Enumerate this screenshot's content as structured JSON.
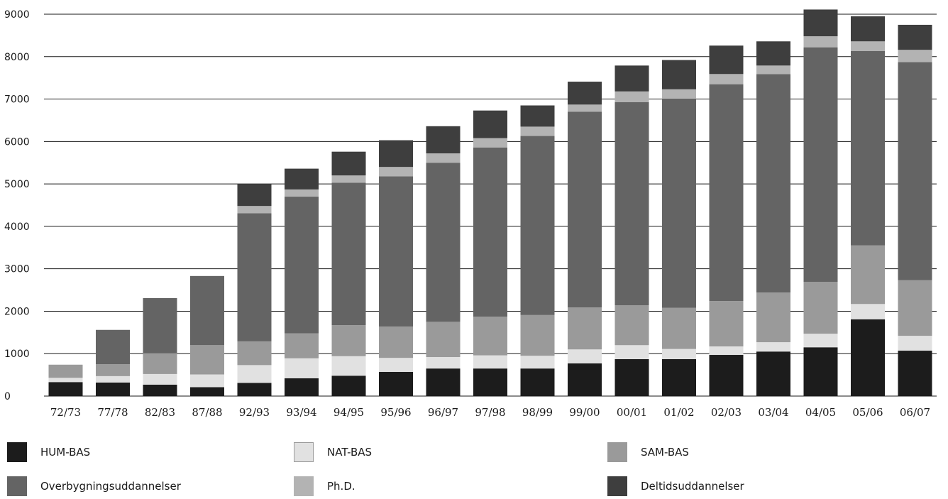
{
  "chart_data": {
    "type": "bar",
    "stacked": true,
    "categories": [
      "72/73",
      "77/78",
      "82/83",
      "87/88",
      "92/93",
      "93/94",
      "94/95",
      "95/96",
      "96/97",
      "97/98",
      "98/99",
      "99/00",
      "00/01",
      "01/02",
      "02/03",
      "03/04",
      "04/05",
      "05/06",
      "06/07"
    ],
    "ylim": [
      0,
      9000
    ],
    "yticks": [
      "0",
      "1000",
      "2000",
      "3000",
      "4000",
      "5000",
      "6000",
      "7000",
      "8000",
      "9000"
    ],
    "grid": true,
    "legend_position": "bottom",
    "series": [
      {
        "name": "HUM-BAS",
        "color": "#1c1c1c",
        "values": [
          330,
          320,
          270,
          210,
          310,
          420,
          480,
          570,
          650,
          650,
          650,
          770,
          870,
          870,
          970,
          1050,
          1150,
          1810,
          1070
        ]
      },
      {
        "name": "NAT-BAS",
        "color": "#e1e1e1",
        "values": [
          100,
          150,
          250,
          300,
          420,
          470,
          460,
          330,
          270,
          310,
          300,
          330,
          330,
          240,
          200,
          220,
          320,
          360,
          350
        ]
      },
      {
        "name": "SAM-BAS",
        "color": "#9a9a9a",
        "values": [
          310,
          280,
          490,
          690,
          560,
          590,
          730,
          740,
          830,
          910,
          960,
          990,
          940,
          970,
          1070,
          1170,
          1220,
          1380,
          1310
        ]
      },
      {
        "name": "Overbygningsuddannelser",
        "color": "#646464",
        "values": [
          0,
          810,
          1300,
          1630,
          3020,
          3220,
          3360,
          3540,
          3750,
          3990,
          4220,
          4610,
          4790,
          4930,
          5110,
          5150,
          5530,
          4580,
          5140
        ]
      },
      {
        "name": "Ph.D.",
        "color": "#b3b3b3",
        "values": [
          0,
          0,
          0,
          0,
          170,
          170,
          170,
          220,
          220,
          220,
          220,
          170,
          250,
          220,
          240,
          200,
          260,
          230,
          290
        ]
      },
      {
        "name": "Deltidsuddannelser",
        "color": "#3e3e3e",
        "values": [
          0,
          0,
          0,
          0,
          520,
          490,
          560,
          630,
          640,
          650,
          500,
          540,
          610,
          690,
          670,
          570,
          630,
          590,
          590
        ]
      }
    ]
  },
  "legend": [
    {
      "name": "HUM-BAS",
      "color": "#1c1c1c"
    },
    {
      "name": "NAT-BAS",
      "color": "#e1e1e1"
    },
    {
      "name": "SAM-BAS",
      "color": "#9a9a9a"
    },
    {
      "name": "Overbygningsuddannelser",
      "color": "#646464"
    },
    {
      "name": "Ph.D.",
      "color": "#b3b3b3"
    },
    {
      "name": "Deltidsuddannelser",
      "color": "#3e3e3e"
    }
  ]
}
